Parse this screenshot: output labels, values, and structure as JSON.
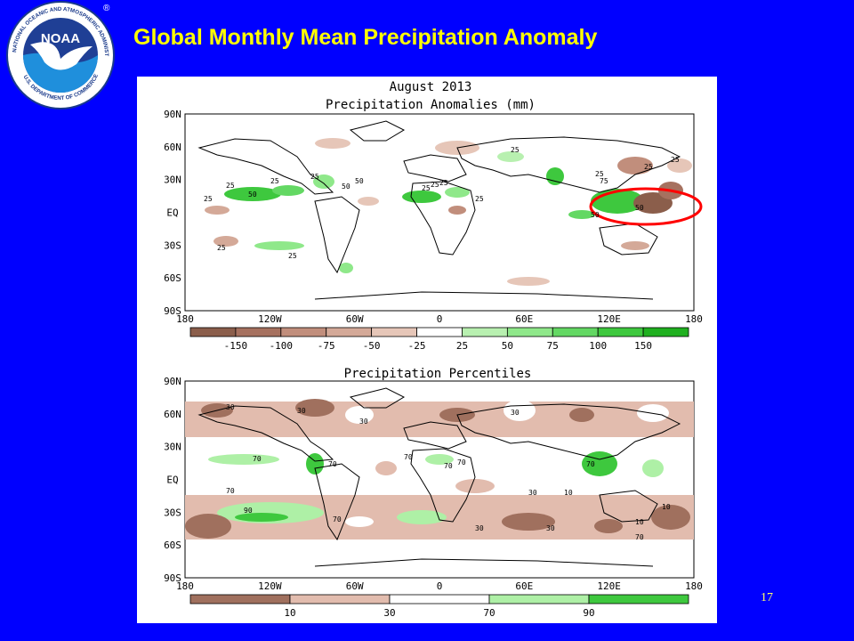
{
  "slide": {
    "title": "Global Monthly Mean Precipitation Anomaly",
    "page_number": "17",
    "background": "#0000ff",
    "title_color": "#ffff00"
  },
  "logo": {
    "wordmark": "NOAA",
    "ring_text": "NATIONAL OCEANIC AND ATMOSPHERIC ADMINISTRATION",
    "lower_text": "U.S. DEPARTMENT OF COMMERCE",
    "registered_mark": "®"
  },
  "top_map": {
    "title_line1": "August 2013",
    "title_line2": "Precipitation Anomalies (mm)",
    "lat_labels": [
      "90N",
      "60N",
      "30N",
      "EQ",
      "30S",
      "60S",
      "90S"
    ],
    "lon_labels": [
      "180",
      "120W",
      "60W",
      "0",
      "60E",
      "120E",
      "180"
    ],
    "colorbar_labels": [
      "-150",
      "-100",
      "-75",
      "-50",
      "-25",
      "25",
      "50",
      "75",
      "100",
      "150"
    ],
    "colorbar_colors": [
      "#8b5e4b",
      "#a6715f",
      "#c18e7c",
      "#d4a998",
      "#e6c6b8",
      "#ffffff",
      "#b8f0b0",
      "#8fe88a",
      "#63d863",
      "#3ec83e",
      "#1fb01f"
    ],
    "contour_labels": [
      "25",
      "25",
      "25",
      "25",
      "25",
      "50",
      "50",
      "50",
      "25",
      "50",
      "25",
      "25",
      "25",
      "25",
      "25",
      "25",
      "25",
      "25",
      "75",
      "50"
    ],
    "highlight_color": "#ff0000"
  },
  "bottom_map": {
    "title": "Precipitation Percentiles",
    "lat_labels": [
      "90N",
      "60N",
      "30N",
      "EQ",
      "30S",
      "60S",
      "90S"
    ],
    "lon_labels": [
      "180",
      "120W",
      "60W",
      "0",
      "60E",
      "120E",
      "180"
    ],
    "colorbar_labels": [
      "10",
      "30",
      "70",
      "90"
    ],
    "colorbar_colors": [
      "#a0705e",
      "#e2bcae",
      "#ffffff",
      "#aef0a6",
      "#3ec83e"
    ],
    "contour_labels": [
      "30",
      "30",
      "30",
      "70",
      "70",
      "70",
      "70",
      "70",
      "30",
      "70",
      "30",
      "30",
      "10",
      "10",
      "70",
      "90",
      "70",
      "30",
      "10",
      "70"
    ]
  }
}
